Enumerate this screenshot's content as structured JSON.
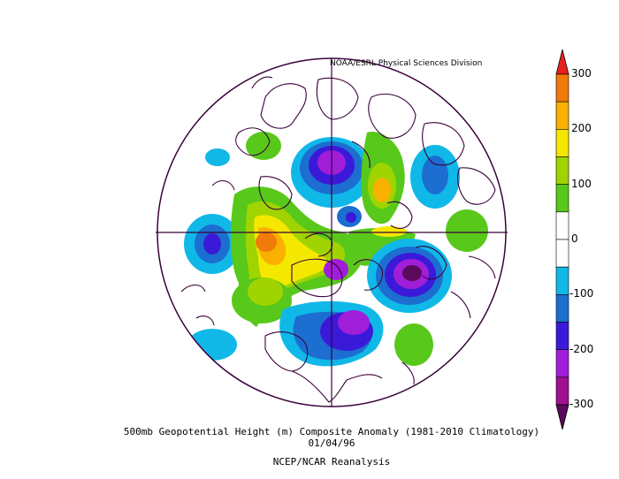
{
  "map": {
    "credit": "NOAA/ESRL Physical Sciences Division",
    "title": "500mb Geopotential Height (m) Composite Anomaly (1981-2010 Climatology)",
    "date": "01/04/96",
    "source": "NCEP/NCAR Reanalysis",
    "projection": "north-polar-stereographic"
  },
  "colorbar": {
    "labels": [
      "300",
      "200",
      "100",
      "0",
      "-100",
      "-200",
      "-300"
    ],
    "bins": [
      {
        "range": ">300",
        "color": "#e8211e"
      },
      {
        "range": "250 to 300",
        "color": "#f07a0a"
      },
      {
        "range": "200 to 250",
        "color": "#f9b000"
      },
      {
        "range": "150 to 200",
        "color": "#f4e800"
      },
      {
        "range": "100 to 150",
        "color": "#a0d400"
      },
      {
        "range": "50 to 100",
        "color": "#58c81a"
      },
      {
        "range": "0 to 50",
        "color": "#ffffff"
      },
      {
        "range": "-50 to 0",
        "color": "#ffffff"
      },
      {
        "range": "-100 to -50",
        "color": "#10b8e8"
      },
      {
        "range": "-150 to -100",
        "color": "#1c6ed0"
      },
      {
        "range": "-200 to -150",
        "color": "#3a1ad8"
      },
      {
        "range": "-250 to -200",
        "color": "#a01ed8"
      },
      {
        "range": "-300 to -250",
        "color": "#a01090"
      },
      {
        "range": "<-300",
        "color": "#5a0a5a"
      }
    ]
  }
}
